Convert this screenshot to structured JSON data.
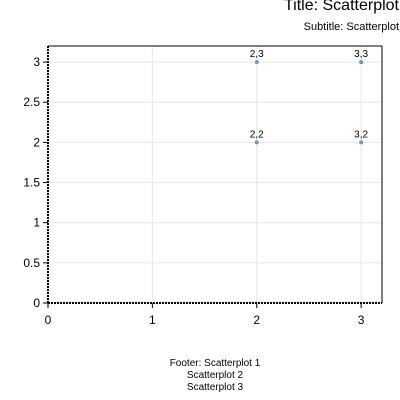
{
  "chart_data": {
    "type": "scatter",
    "title": "Title: Scatterplot",
    "subtitle": "Subtitle: Scatterplot",
    "footer": [
      "Footer: Scatterplot 1",
      "Scatterplot 2",
      "Scatterplot 3"
    ],
    "xlim": [
      0,
      3.2
    ],
    "ylim": [
      0,
      3.2
    ],
    "x_ticks": [
      0,
      1,
      2,
      3
    ],
    "y_ticks": [
      0,
      0.5,
      1,
      1.5,
      2,
      2.5,
      3
    ],
    "x_tick_labels": [
      "0",
      "1",
      "2",
      "3"
    ],
    "y_tick_labels": [
      "0",
      "0.5",
      "1",
      "1.5",
      "2",
      "2.5",
      "3"
    ],
    "grid": true,
    "point_color": "#5b9bd5",
    "points": [
      {
        "x": 2,
        "y": 2,
        "label": "2,2"
      },
      {
        "x": 2,
        "y": 3,
        "label": "2,3"
      },
      {
        "x": 3,
        "y": 2,
        "label": "3,2"
      },
      {
        "x": 3,
        "y": 3,
        "label": "3,3"
      }
    ]
  }
}
